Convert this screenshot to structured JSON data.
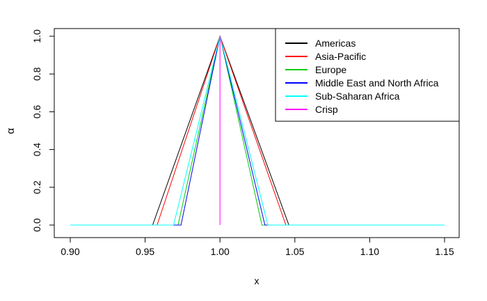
{
  "chart_data": {
    "type": "line",
    "xlabel": "x",
    "ylabel": "α",
    "xlim": [
      0.9,
      1.15
    ],
    "ylim": [
      0,
      1
    ],
    "x_ticks": [
      {
        "value": 0.9,
        "label": "0.90"
      },
      {
        "value": 0.95,
        "label": "0.95"
      },
      {
        "value": 1.0,
        "label": "1.00"
      },
      {
        "value": 1.05,
        "label": "1.05"
      },
      {
        "value": 1.1,
        "label": "1.10"
      },
      {
        "value": 1.15,
        "label": "1.15"
      }
    ],
    "y_ticks": [
      {
        "value": 0.0,
        "label": "0.0"
      },
      {
        "value": 0.2,
        "label": "0.2"
      },
      {
        "value": 0.4,
        "label": "0.4"
      },
      {
        "value": 0.6,
        "label": "0.6"
      },
      {
        "value": 0.8,
        "label": "0.8"
      },
      {
        "value": 1.0,
        "label": "1.0"
      }
    ],
    "grid": false,
    "legend_position": "top-right",
    "series": [
      {
        "name": "Americas",
        "color": "#000000",
        "x": [
          0.9,
          0.955,
          1.0,
          1.046,
          1.15
        ],
        "y": [
          0,
          0,
          1,
          0,
          0
        ]
      },
      {
        "name": "Asia-Pacific",
        "color": "#ff0000",
        "x": [
          0.9,
          0.958,
          1.0,
          1.044,
          1.15
        ],
        "y": [
          0,
          0,
          1,
          0,
          0
        ]
      },
      {
        "name": "Europe",
        "color": "#00cd00",
        "x": [
          0.9,
          0.972,
          1.0,
          1.028,
          1.15
        ],
        "y": [
          0,
          0,
          1,
          0,
          0
        ]
      },
      {
        "name": "Middle East and North Africa",
        "color": "#0000ff",
        "x": [
          0.9,
          0.974,
          1.0,
          1.03,
          1.15
        ],
        "y": [
          0,
          0,
          1,
          0,
          0
        ]
      },
      {
        "name": "Sub-Saharan Africa",
        "color": "#00ffff",
        "x": [
          0.9,
          0.969,
          1.0,
          1.032,
          1.15
        ],
        "y": [
          0,
          0,
          1,
          0,
          0
        ]
      },
      {
        "name": "Crisp",
        "color": "#ff00ff",
        "x": [
          1.0,
          1.0
        ],
        "y": [
          0,
          1
        ]
      }
    ]
  }
}
